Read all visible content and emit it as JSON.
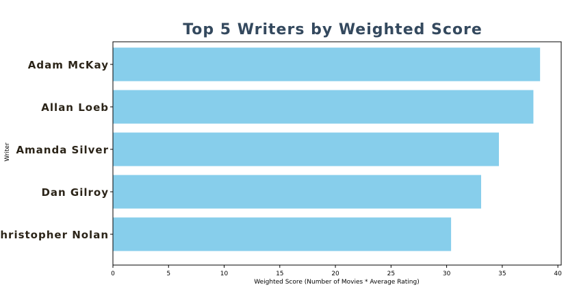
{
  "chart_data": {
    "type": "bar",
    "orientation": "horizontal",
    "title": "Top 5 Writers by Weighted Score",
    "xlabel": "Weighted Score (Number of Movies * Average Rating)",
    "ylabel": "Writer",
    "categories": [
      "Adam McKay",
      "Allan Loeb",
      "Amanda Silver",
      "Dan Gilroy",
      "Christopher Nolan"
    ],
    "values": [
      38.4,
      37.8,
      34.7,
      33.1,
      30.4
    ],
    "xlim": [
      0,
      40.3
    ],
    "xticks": [
      0,
      5,
      10,
      15,
      20,
      25,
      30,
      35,
      40
    ],
    "grid": false,
    "colors": {
      "bar": "#87ceeb",
      "title": "#34495e",
      "category_label": "#2b2418",
      "axis": "#000000"
    }
  }
}
